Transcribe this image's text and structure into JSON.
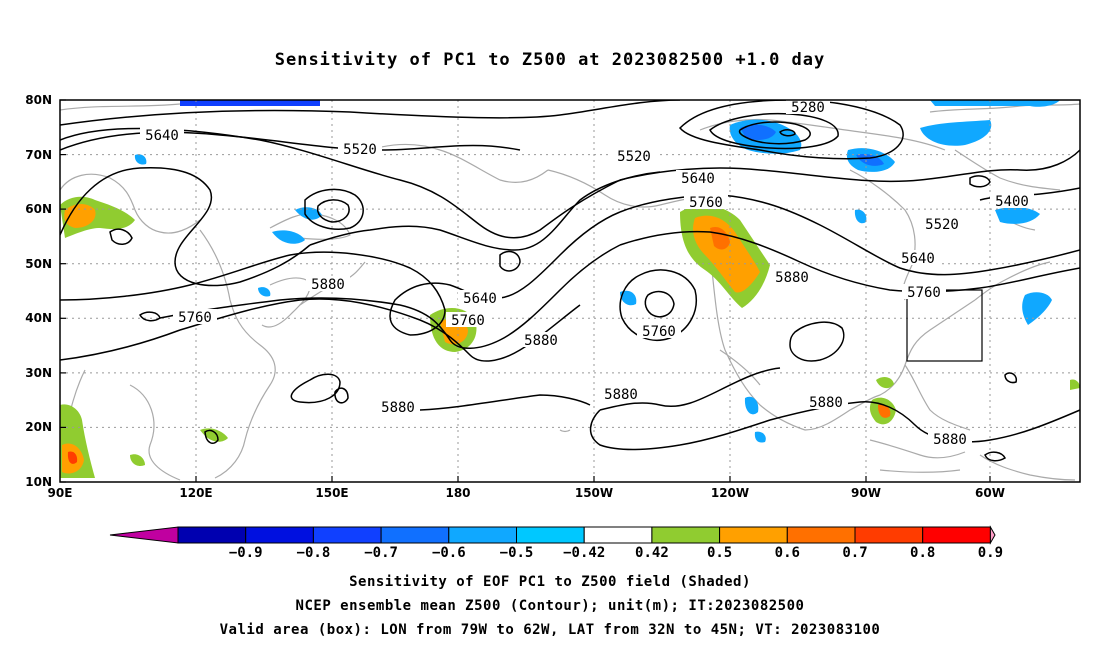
{
  "title": "Sensitivity of PC1 to Z500 at 2023082500 +1.0 day",
  "lat_labels": [
    "80N",
    "70N",
    "60N",
    "50N",
    "40N",
    "30N",
    "20N",
    "10N"
  ],
  "lon_labels": [
    "90E",
    "120E",
    "150E",
    "180",
    "150W",
    "120W",
    "90W",
    "60W"
  ],
  "contour_labels": [
    "5280",
    "5640",
    "5520",
    "5520",
    "5640",
    "5760",
    "5400",
    "5520",
    "5640",
    "5760",
    "5880",
    "5880",
    "5760",
    "5640",
    "5760",
    "5880",
    "5880",
    "5880",
    "5880",
    "5760",
    "5880"
  ],
  "colorbar": {
    "labels": [
      "-0.9",
      "-0.8",
      "-0.7",
      "-0.6",
      "-0.5",
      "-0.42",
      "0.42",
      "0.5",
      "0.6",
      "0.7",
      "0.8",
      "0.9"
    ],
    "colors": [
      "#0000b0",
      "#0010e0",
      "#1040ff",
      "#1070ff",
      "#10a8ff",
      "#00c8ff",
      "#ffffff",
      "#90cc30",
      "#ffa000",
      "#ff7000",
      "#ff3c00",
      "#ff0000"
    ],
    "low_end_color": "#c000a0",
    "high_end_color": "#ff9ec8"
  },
  "footer": {
    "line1": "Sensitivity of EOF PC1 to Z500 field (Shaded)",
    "line2": "NCEP ensemble mean Z500 (Contour); unit(m); IT:2023082500",
    "line3": "Valid area (box): LON from 79W to 62W, LAT from 32N to 45N; VT: 2023083100"
  }
}
